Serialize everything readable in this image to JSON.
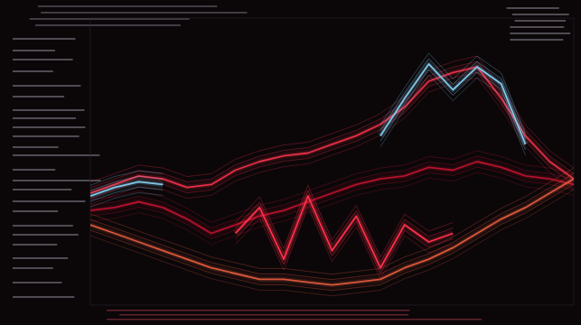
{
  "chart_data": {
    "type": "line",
    "x": [
      0,
      5,
      10,
      15,
      20,
      25,
      30,
      35,
      40,
      45,
      50,
      55,
      60,
      65,
      70,
      75,
      80,
      85,
      90,
      95,
      100
    ],
    "xlim": [
      0,
      100
    ],
    "ylim": [
      0,
      100
    ],
    "tick_labels": false,
    "grid": false,
    "series": [
      {
        "color": "#b3122b",
        "values": [
          33,
          34,
          36,
          34,
          30,
          25,
          28,
          31,
          33,
          36,
          39,
          42,
          44,
          45,
          48,
          47,
          50,
          48,
          45,
          44,
          42
        ]
      },
      {
        "color": "#e62e45",
        "values": [
          39,
          42,
          45,
          44,
          41,
          42,
          47,
          50,
          52,
          53,
          56,
          59,
          63,
          69,
          78,
          81,
          83,
          72,
          59,
          50,
          44
        ]
      },
      {
        "color": "#7fc8ea",
        "values": [
          38,
          41,
          43,
          42,
          null,
          null,
          null,
          null,
          null,
          null,
          null,
          null,
          59,
          72,
          84,
          75,
          83,
          77,
          56,
          null,
          null
        ]
      },
      {
        "color": "#d9573a",
        "values": [
          28,
          25,
          22,
          19,
          16,
          13,
          11,
          9,
          9,
          8,
          7,
          8,
          9,
          13,
          16,
          20,
          25,
          30,
          34,
          39,
          44
        ]
      },
      {
        "color": "#ff3049",
        "values": [
          null,
          null,
          null,
          null,
          null,
          null,
          25,
          34,
          16,
          38,
          19,
          31,
          13,
          28,
          22,
          25,
          null,
          null,
          null,
          null,
          null
        ]
      }
    ]
  }
}
